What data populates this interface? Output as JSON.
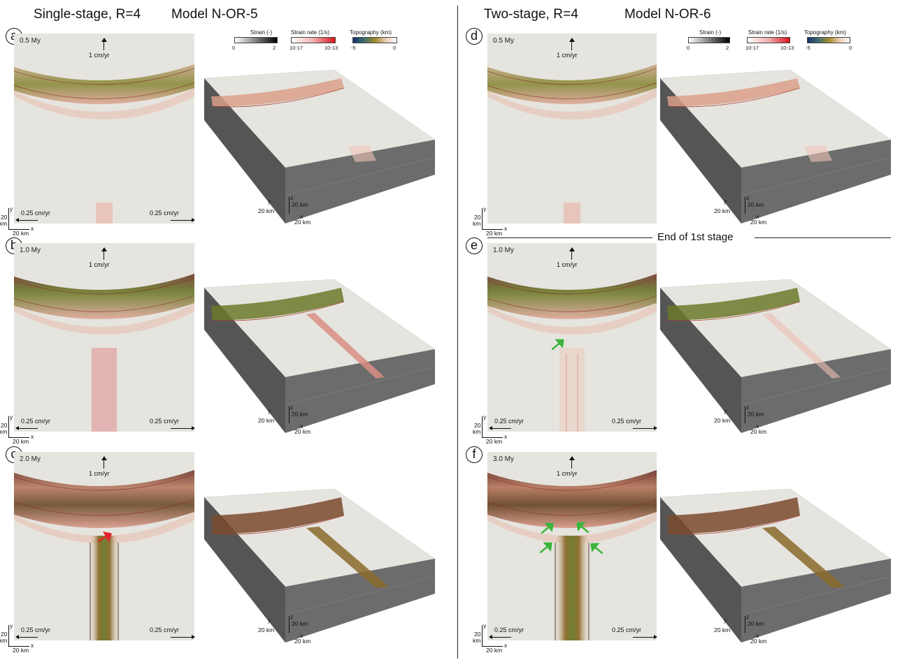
{
  "left_title": {
    "config": "Single-stage, R=4",
    "model": "Model N-OR-5"
  },
  "right_title": {
    "config": "Two-stage, R=4",
    "model": "Model N-OR-6"
  },
  "stage_note": "End of 1st stage",
  "legend": {
    "strain": {
      "label": "Strain (-)",
      "min": "0",
      "max": "2"
    },
    "strain_rate": {
      "label": "Strain rate (1/s)",
      "min": "10-17",
      "max": "10-13"
    },
    "topography": {
      "label": "Topography (km)",
      "min": "-5",
      "max": "0"
    }
  },
  "panels": [
    {
      "id": "a",
      "time": "0.5 My",
      "top_velocity": "1 cm/yr",
      "side_velocity_left": "0.25 cm/yr",
      "side_velocity_right": "0.25 cm/yr"
    },
    {
      "id": "b",
      "time": "1.0 My",
      "top_velocity": "1 cm/yr",
      "side_velocity_left": "0.25 cm/yr",
      "side_velocity_right": "0.25 cm/yr"
    },
    {
      "id": "c",
      "time": "2.0 My",
      "top_velocity": "1 cm/yr",
      "side_velocity_left": "0.25 cm/yr",
      "side_velocity_right": "0.25 cm/yr"
    },
    {
      "id": "d",
      "time": "0.5 My",
      "top_velocity": "1 cm/yr",
      "side_velocity_left": "",
      "side_velocity_right": ""
    },
    {
      "id": "e",
      "time": "1.0 My",
      "top_velocity": "1 cm/yr",
      "side_velocity_left": "0.25 cm/yr",
      "side_velocity_right": "0.25 cm/yr"
    },
    {
      "id": "f",
      "time": "3.0 My",
      "top_velocity": "1 cm/yr",
      "side_velocity_left": "0.25 cm/yr",
      "side_velocity_right": "0.25 cm/yr"
    }
  ],
  "axes": {
    "x": "x",
    "y": "y",
    "z": "z",
    "scale": "20 km",
    "scale_stacked_top": "20",
    "scale_stacked_bottom": "km"
  },
  "colors": {
    "rift_green": "#6b7a2a",
    "rift_red": "#c97a6e",
    "fault_dark": "#7a3a2e",
    "side_gray": "#6c6c6c",
    "surface": "#e6e4df",
    "arrow_red": "#e8202a",
    "arrow_green": "#3bb53b"
  }
}
